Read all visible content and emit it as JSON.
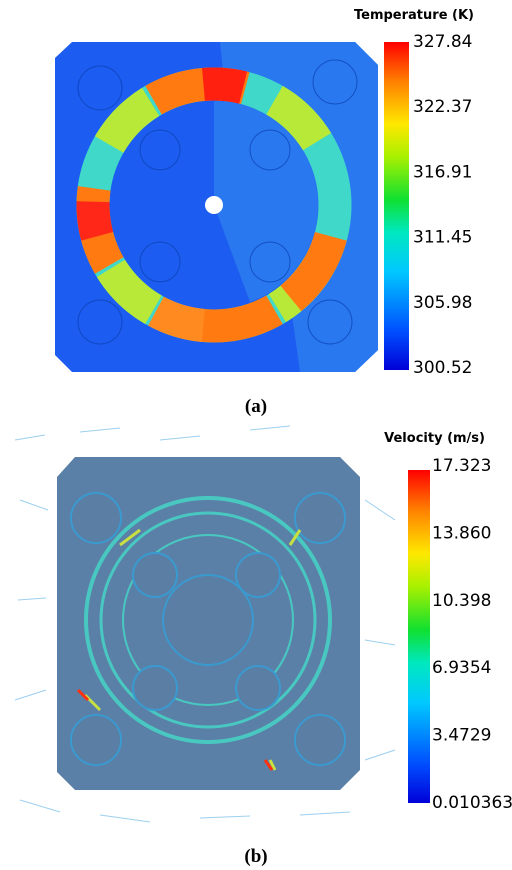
{
  "panels": [
    {
      "colorbar": {
        "title": "Temperature (K)",
        "ticks": [
          "327.84",
          "322.37",
          "316.91",
          "311.45",
          "305.98",
          "300.52"
        ]
      },
      "caption": "(a)"
    },
    {
      "colorbar": {
        "title": "Velocity (m/s)",
        "ticks": [
          "17.323",
          "13.860",
          "10.398",
          "6.9354",
          "3.4729",
          "0.010363"
        ]
      },
      "caption": "(b)"
    }
  ]
}
